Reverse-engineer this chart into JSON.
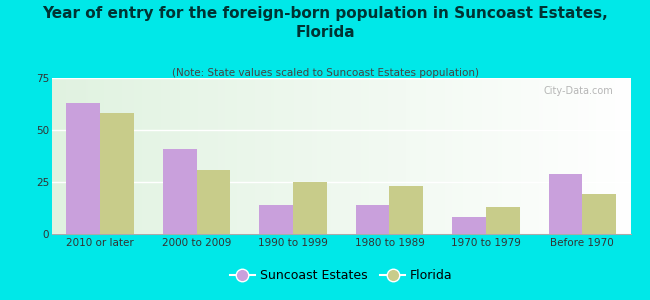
{
  "title": "Year of entry for the foreign-born population in Suncoast Estates,\nFlorida",
  "subtitle": "(Note: State values scaled to Suncoast Estates population)",
  "categories": [
    "2010 or later",
    "2000 to 2009",
    "1990 to 1999",
    "1980 to 1989",
    "1970 to 1979",
    "Before 1970"
  ],
  "suncoast_values": [
    63,
    41,
    14,
    14,
    8,
    29
  ],
  "florida_values": [
    58,
    31,
    25,
    23,
    13,
    19
  ],
  "suncoast_color": "#c9a0dc",
  "florida_color": "#c8cc8a",
  "background_color": "#00e8e8",
  "ylim": [
    0,
    75
  ],
  "yticks": [
    0,
    25,
    50,
    75
  ],
  "legend_suncoast": "Suncoast Estates",
  "legend_florida": "Florida",
  "bar_width": 0.35,
  "title_fontsize": 11,
  "subtitle_fontsize": 7.5,
  "tick_fontsize": 7.5,
  "legend_fontsize": 9,
  "watermark": "City-Data.com"
}
